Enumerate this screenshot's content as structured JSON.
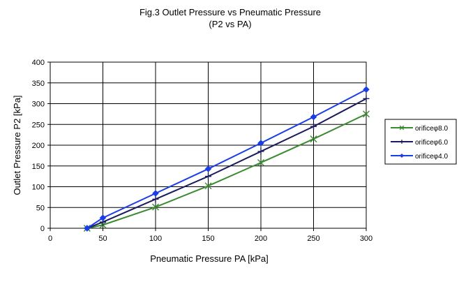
{
  "chart_data": {
    "type": "line",
    "title": "Fig.3 Outlet Pressure vs Pneumatic Pressure",
    "subtitle": "(P2 vs PA)",
    "xlabel": "Pneumatic Pressure PA [kPa]",
    "ylabel": "Outlet Pressure P2 [kPa]",
    "xlim": [
      0,
      300
    ],
    "ylim": [
      0,
      400
    ],
    "xticks": [
      0,
      50,
      100,
      150,
      200,
      250,
      300
    ],
    "yticks": [
      0,
      50,
      100,
      150,
      200,
      250,
      300,
      350,
      400
    ],
    "grid": true,
    "legend_position": "right",
    "series": [
      {
        "name": "orificeφ8.0",
        "color": "#3a8a30",
        "marker": "x",
        "x": [
          35,
          50,
          100,
          150,
          200,
          250,
          300
        ],
        "y": [
          0,
          8,
          51,
          102,
          158,
          215,
          275
        ]
      },
      {
        "name": "orificeφ6.0",
        "color": "#1a1a5e",
        "marker": "plus",
        "x": [
          35,
          50,
          100,
          150,
          200,
          250,
          300
        ],
        "y": [
          0,
          15,
          70,
          125,
          185,
          245,
          312
        ]
      },
      {
        "name": "orificeφ4.0",
        "color": "#1a3de8",
        "marker": "diamond",
        "x": [
          35,
          50,
          100,
          150,
          200,
          250,
          300
        ],
        "y": [
          0,
          25,
          84,
          143,
          205,
          268,
          334
        ]
      }
    ]
  }
}
